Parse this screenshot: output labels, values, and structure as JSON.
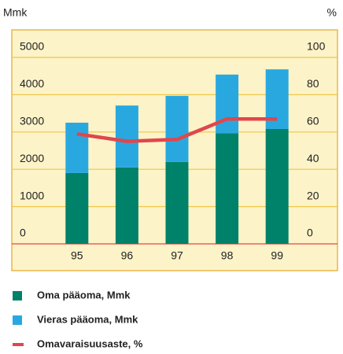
{
  "chart_data": {
    "type": "bar",
    "stacked": true,
    "y_label": "Mmk",
    "y2_label": "%",
    "categories": [
      "95",
      "96",
      "97",
      "98",
      "99"
    ],
    "series": [
      {
        "name": "Oma pääoma, Mmk",
        "color": "#00826a",
        "values": [
          1900,
          2050,
          2200,
          2970,
          3080
        ]
      },
      {
        "name": "Vieras pääoma, Mmk",
        "color": "#29a8e0",
        "values": [
          1350,
          1660,
          1770,
          1570,
          1600
        ]
      },
      {
        "name": "Omavaraisuusaste, %",
        "color": "#e0474c",
        "type": "line",
        "axis": "y2",
        "values": [
          59,
          55,
          56,
          67,
          67
        ]
      }
    ],
    "ylim": [
      0,
      5000
    ],
    "yticks": [
      0,
      1000,
      2000,
      3000,
      4000,
      5000
    ],
    "y2lim": [
      0,
      100
    ],
    "y2ticks": [
      0,
      20,
      40,
      60,
      80,
      100
    ],
    "grid": true
  }
}
